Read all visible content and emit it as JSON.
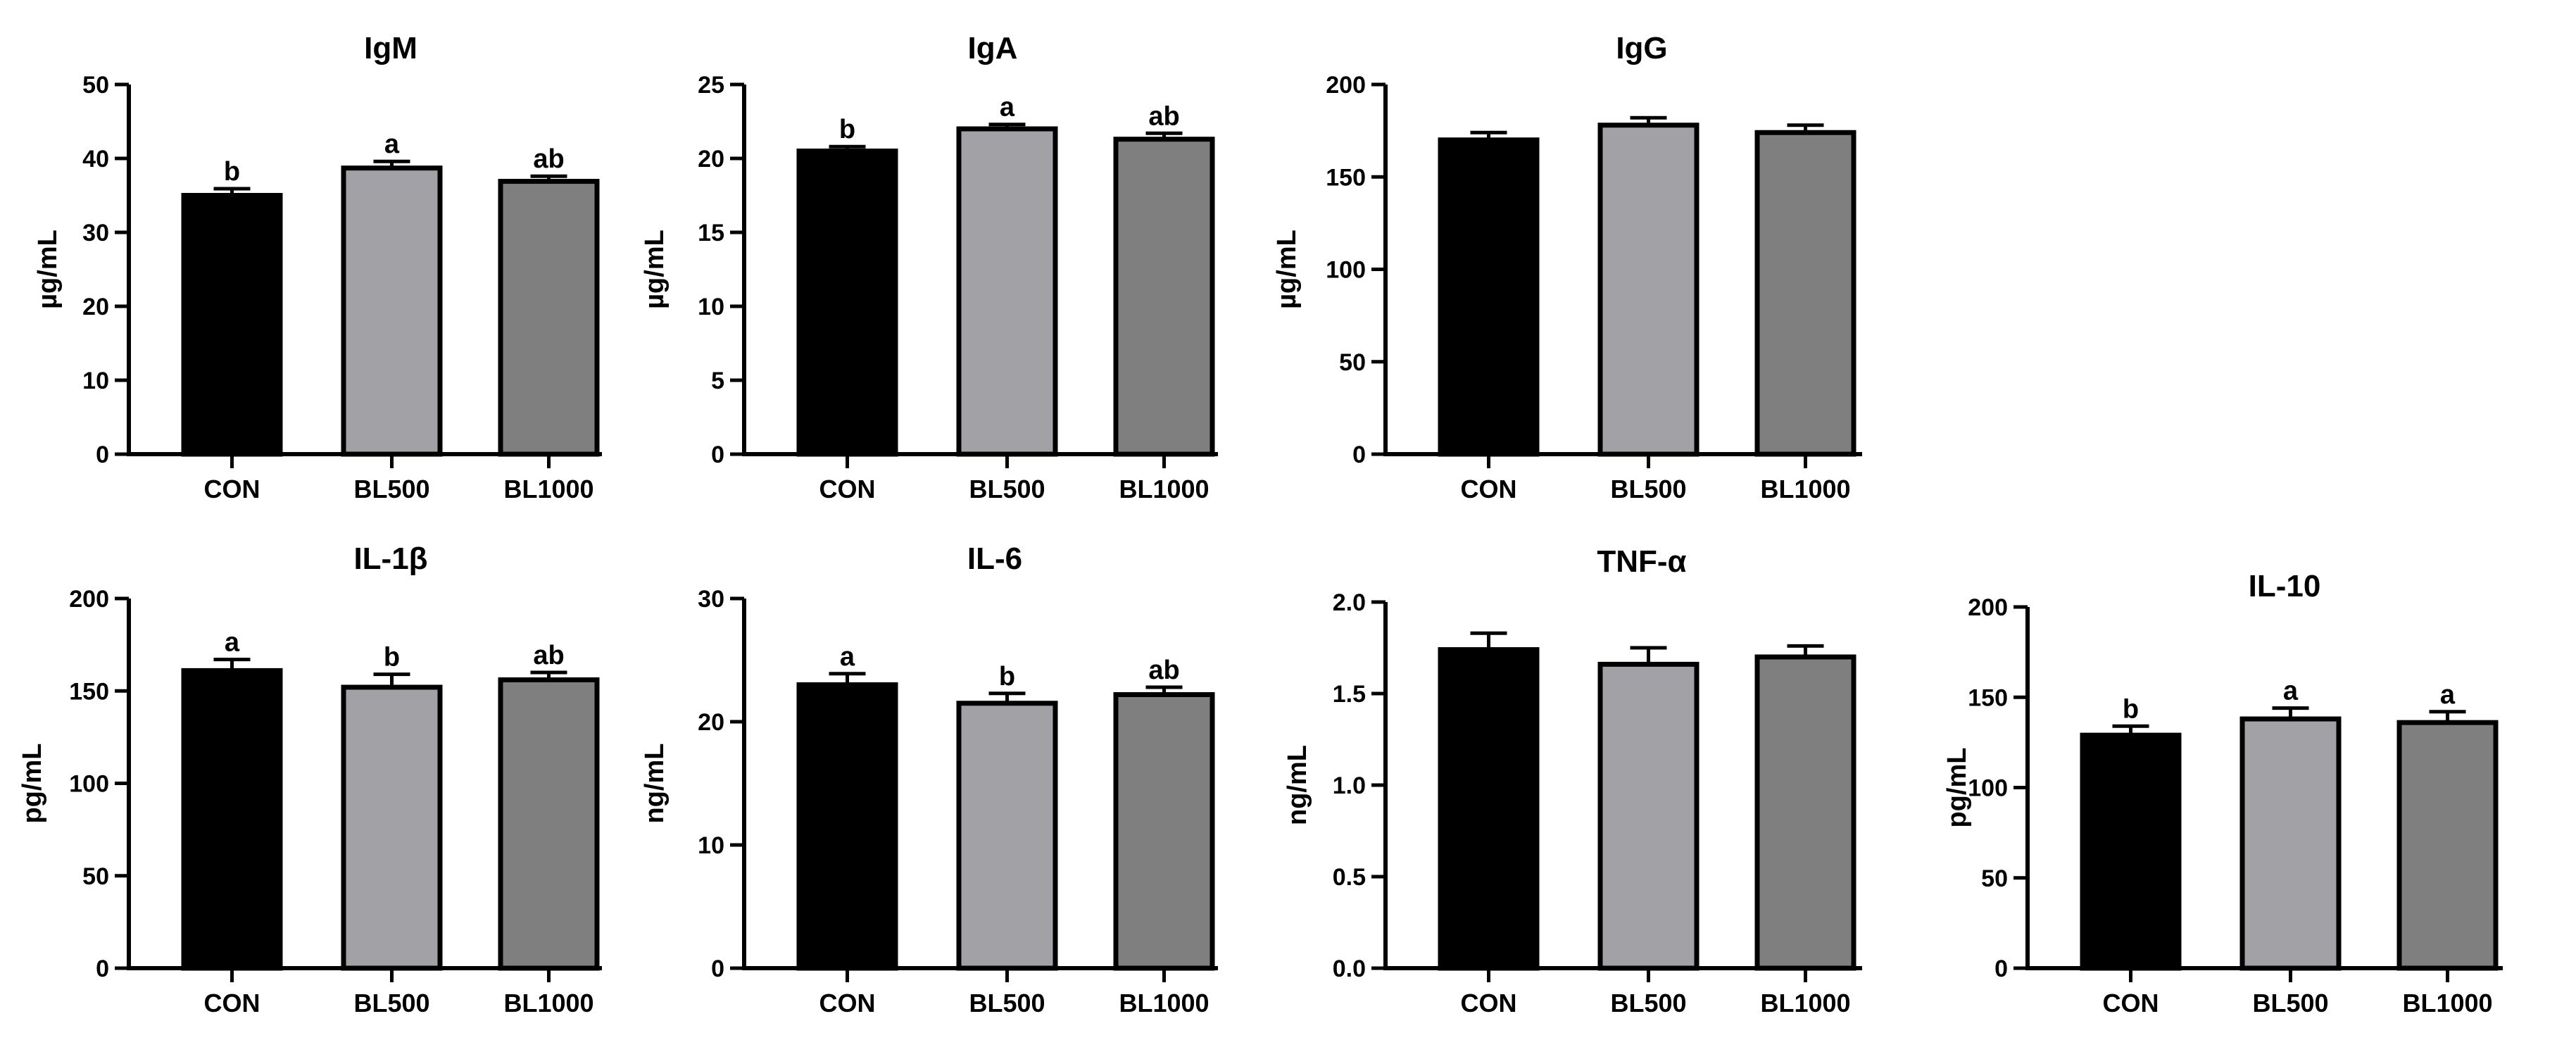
{
  "chart_data": [
    {
      "type": "bar",
      "title": "IgM",
      "ylabel": "µg/mL",
      "xlabel": "",
      "categories": [
        "CON",
        "BL500",
        "BL1000"
      ],
      "values": [
        35.0,
        38.7,
        36.9
      ],
      "errors": [
        0.9,
        0.9,
        0.7
      ],
      "letters": [
        "b",
        "a",
        "ab"
      ],
      "ylim": [
        0,
        50
      ],
      "yticks": [
        "0",
        "10",
        "20",
        "30",
        "40",
        "50"
      ],
      "colors": [
        "#000000",
        "#a2a1a6",
        "#7f7f7f"
      ]
    },
    {
      "type": "bar",
      "title": "IgA",
      "ylabel": "µg/mL",
      "xlabel": "",
      "categories": [
        "CON",
        "BL500",
        "BL1000"
      ],
      "values": [
        20.5,
        22.0,
        21.3
      ],
      "errors": [
        0.3,
        0.3,
        0.4
      ],
      "letters": [
        "b",
        "a",
        "ab"
      ],
      "ylim": [
        0,
        25
      ],
      "yticks": [
        "0",
        "5",
        "10",
        "15",
        "20",
        "25"
      ],
      "colors": [
        "#000000",
        "#a2a1a6",
        "#7f7f7f"
      ]
    },
    {
      "type": "bar",
      "title": "IgG",
      "ylabel": "µg/mL",
      "xlabel": "",
      "categories": [
        "CON",
        "BL500",
        "BL1000"
      ],
      "values": [
        170,
        178,
        174
      ],
      "errors": [
        4,
        4,
        4
      ],
      "letters": [
        "",
        "",
        ""
      ],
      "ylim": [
        0,
        200
      ],
      "yticks": [
        "0",
        "50",
        "100",
        "150",
        "200"
      ],
      "colors": [
        "#000000",
        "#a2a1a6",
        "#7f7f7f"
      ]
    },
    {
      "type": "bar",
      "title": "IL-1β",
      "ylabel": "pg/mL",
      "xlabel": "",
      "categories": [
        "CON",
        "BL500",
        "BL1000"
      ],
      "values": [
        161,
        152,
        156
      ],
      "errors": [
        6,
        7,
        4
      ],
      "letters": [
        "a",
        "b",
        "ab"
      ],
      "ylim": [
        0,
        200
      ],
      "yticks": [
        "0",
        "50",
        "100",
        "150",
        "200"
      ],
      "colors": [
        "#000000",
        "#a2a1a6",
        "#7f7f7f"
      ]
    },
    {
      "type": "bar",
      "title": "IL-6",
      "ylabel": "ng/mL",
      "xlabel": "",
      "categories": [
        "CON",
        "BL500",
        "BL1000"
      ],
      "values": [
        23.0,
        21.5,
        22.2
      ],
      "errors": [
        0.9,
        0.8,
        0.6
      ],
      "letters": [
        "a",
        "b",
        "ab"
      ],
      "ylim": [
        0,
        30
      ],
      "yticks": [
        "0",
        "10",
        "20",
        "30"
      ],
      "colors": [
        "#000000",
        "#a2a1a6",
        "#7f7f7f"
      ]
    },
    {
      "type": "bar",
      "title": "TNF-α",
      "ylabel": "ng/mL",
      "xlabel": "",
      "categories": [
        "CON",
        "BL500",
        "BL1000"
      ],
      "values": [
        1.74,
        1.66,
        1.7
      ],
      "errors": [
        0.09,
        0.09,
        0.06
      ],
      "letters": [
        "",
        "",
        ""
      ],
      "ylim": [
        0,
        2.0
      ],
      "yticks": [
        "0.0",
        "0.5",
        "1.0",
        "1.5",
        "2.0"
      ],
      "colors": [
        "#000000",
        "#a2a1a6",
        "#7f7f7f"
      ]
    },
    {
      "type": "bar",
      "title": "IL-10",
      "ylabel": "pg/mL",
      "xlabel": "",
      "categories": [
        "CON",
        "BL500",
        "BL1000"
      ],
      "values": [
        129,
        138,
        136
      ],
      "errors": [
        5,
        6,
        6
      ],
      "letters": [
        "b",
        "a",
        "a"
      ],
      "ylim": [
        0,
        200
      ],
      "yticks": [
        "0",
        "50",
        "100",
        "150",
        "200"
      ],
      "colors": [
        "#000000",
        "#a2a1a6",
        "#7f7f7f"
      ]
    }
  ]
}
